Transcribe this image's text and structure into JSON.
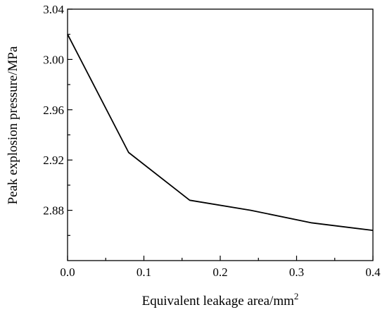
{
  "chart_data": {
    "type": "line",
    "title": "",
    "xlabel": "Equivalent leakage area/mm",
    "xlabel_superscript": "2",
    "ylabel": "Peak explosion pressure/MPa",
    "xlim": [
      0.0,
      0.4
    ],
    "ylim": [
      2.84,
      3.04
    ],
    "x_ticks": [
      0.0,
      0.1,
      0.2,
      0.3,
      0.4
    ],
    "x_tick_labels": [
      "0.0",
      "0.1",
      "0.2",
      "0.3",
      "0.4"
    ],
    "y_ticks": [
      2.88,
      2.92,
      2.96,
      3.0,
      3.04
    ],
    "y_tick_labels": [
      "2.88",
      "2.92",
      "2.96",
      "3.00",
      "3.04"
    ],
    "grid": false,
    "legend": "none",
    "series": [
      {
        "x": [
          0.0,
          0.08,
          0.16,
          0.24,
          0.32,
          0.4
        ],
        "y": [
          3.02,
          2.926,
          2.888,
          2.88,
          2.87,
          2.864
        ],
        "color": "#000000"
      }
    ]
  }
}
